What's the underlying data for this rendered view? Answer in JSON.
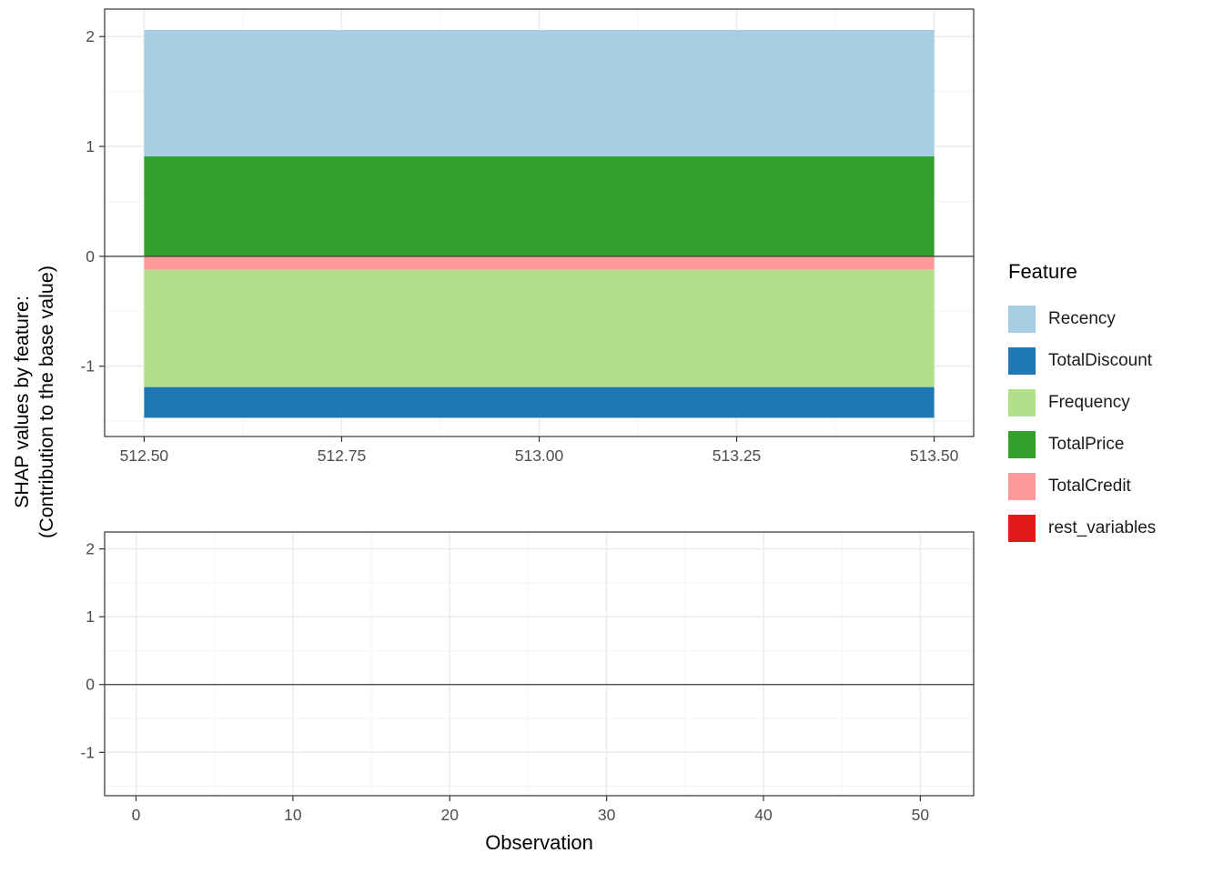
{
  "figure": {
    "background": "#FFFFFF",
    "ylabel": [
      "SHAP values by feature:",
      "(Contribution to the base value)"
    ],
    "xlabel": "Observation"
  },
  "legend": {
    "title": "Feature",
    "items": [
      {
        "label": "Recency",
        "color": "#A6CEE3"
      },
      {
        "label": "TotalDiscount",
        "color": "#1F78B4"
      },
      {
        "label": "Frequency",
        "color": "#B2DF8A"
      },
      {
        "label": "TotalPrice",
        "color": "#33A02C"
      },
      {
        "label": "TotalCredit",
        "color": "#FB9A99"
      },
      {
        "label": "rest_variables",
        "color": "#E31A1C"
      }
    ]
  },
  "chart_data": [
    {
      "type": "bar",
      "stacked": true,
      "title": "",
      "xlabel": "",
      "ylabel": "SHAP values by feature: (Contribution to the base value)",
      "x": [
        513
      ],
      "bar_width": 1,
      "xlim": [
        512.45,
        513.55
      ],
      "ylim": [
        -1.64,
        2.25
      ],
      "x_ticks": [
        512.5,
        512.75,
        513.0,
        513.25,
        513.5
      ],
      "x_tick_labels": [
        "512.50",
        "512.75",
        "513.00",
        "513.25",
        "513.50"
      ],
      "y_ticks": [
        -1,
        0,
        1,
        2
      ],
      "y_tick_labels": [
        "-1",
        "0",
        "1",
        "2"
      ],
      "zero_line": 0,
      "grid": true,
      "legend_position": "right",
      "series": [
        {
          "name": "TotalPrice",
          "color": "#33A02C",
          "values": [
            0.91
          ]
        },
        {
          "name": "Recency",
          "color": "#A6CEE3",
          "values": [
            1.15
          ]
        },
        {
          "name": "TotalCredit",
          "color": "#FB9A99",
          "values": [
            -0.12
          ]
        },
        {
          "name": "Frequency",
          "color": "#B2DF8A",
          "values": [
            -1.07
          ]
        },
        {
          "name": "TotalDiscount",
          "color": "#1F78B4",
          "values": [
            -0.28
          ]
        },
        {
          "name": "rest_variables",
          "color": "#E31A1C",
          "values": [
            0
          ]
        }
      ]
    },
    {
      "type": "bar",
      "stacked": true,
      "title": "",
      "xlabel": "Observation",
      "x": [],
      "bar_width": 1,
      "xlim": [
        -2,
        53.4
      ],
      "ylim": [
        -1.64,
        2.25
      ],
      "x_ticks": [
        0,
        10,
        20,
        30,
        40,
        50
      ],
      "x_tick_labels": [
        "0",
        "10",
        "20",
        "30",
        "40",
        "50"
      ],
      "y_ticks": [
        -1,
        0,
        1,
        2
      ],
      "y_tick_labels": [
        "-1",
        "0",
        "1",
        "2"
      ],
      "zero_line": 0,
      "grid": true,
      "series": []
    }
  ],
  "theme": {
    "grid_major": "#EBEBEB",
    "grid_minor": "#F3F3F3",
    "panel_border": "#333333",
    "tick_color": "#333333",
    "tick_label_color": "#4D4D4D",
    "zero_line_color": "#3C3C3C",
    "text_color": "#000000"
  }
}
